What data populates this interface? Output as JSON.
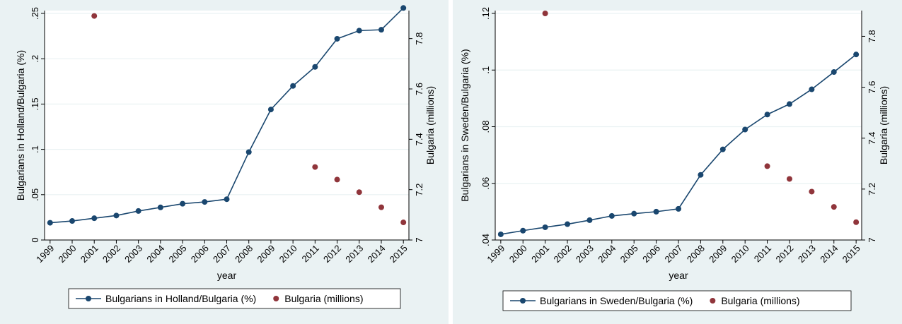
{
  "chart_data": [
    {
      "type": "line",
      "xlabel": "year",
      "ylabel_left": "Bulgarians in Holland/Bulgaria (%)",
      "ylabel_right": "Bulgaria (millions)",
      "x": [
        1999,
        2000,
        2001,
        2002,
        2003,
        2004,
        2005,
        2006,
        2007,
        2008,
        2009,
        2010,
        2011,
        2012,
        2013,
        2014,
        2015
      ],
      "xticks": [
        "1999",
        "2000",
        "2001",
        "2002",
        "2003",
        "2004",
        "2005",
        "2006",
        "2007",
        "2008",
        "2009",
        "2010",
        "2011",
        "2012",
        "2013",
        "2014",
        "2015"
      ],
      "ylim_left": [
        0,
        0.25
      ],
      "yticks_left": [
        0,
        0.05,
        0.1,
        0.15,
        0.2,
        0.25
      ],
      "yticklabels_left": [
        "0",
        ".05",
        ".1",
        ".15",
        ".2",
        ".25"
      ],
      "ylim_right": [
        7.0,
        7.9
      ],
      "yticks_right": [
        7.0,
        7.2,
        7.4,
        7.6,
        7.8
      ],
      "yticklabels_right": [
        "7",
        "7.2",
        "7.4",
        "7.6",
        "7.8"
      ],
      "series": [
        {
          "name": "Bulgarians in Holland/Bulgaria (%)",
          "axis": "left",
          "style": "line-marker",
          "color": "#1a476f",
          "x": [
            1999,
            2000,
            2001,
            2002,
            2003,
            2004,
            2005,
            2006,
            2007,
            2008,
            2009,
            2010,
            2011,
            2012,
            2013,
            2014,
            2015
          ],
          "values": [
            0.019,
            0.021,
            0.024,
            0.027,
            0.032,
            0.036,
            0.04,
            0.042,
            0.045,
            0.097,
            0.144,
            0.17,
            0.191,
            0.222,
            0.231,
            0.232,
            0.256
          ]
        },
        {
          "name": "Bulgaria (millions)",
          "axis": "right",
          "style": "scatter",
          "color": "#90353b",
          "x": [
            2001,
            2011,
            2012,
            2013,
            2014,
            2015
          ],
          "values": [
            7.89,
            7.29,
            7.24,
            7.19,
            7.13,
            7.07
          ]
        }
      ],
      "grid": "horizontal",
      "legend": "bottom"
    },
    {
      "type": "line",
      "xlabel": "year",
      "ylabel_left": "Bulgarians in Sweden/Bulgaria (%)",
      "ylabel_right": "Bulgaria (millions)",
      "x": [
        1999,
        2000,
        2001,
        2002,
        2003,
        2004,
        2005,
        2006,
        2007,
        2008,
        2009,
        2010,
        2011,
        2012,
        2013,
        2014,
        2015
      ],
      "xticks": [
        "1999",
        "2000",
        "2001",
        "2002",
        "2003",
        "2004",
        "2005",
        "2006",
        "2007",
        "2008",
        "2009",
        "2010",
        "2011",
        "2012",
        "2013",
        "2014",
        "2015"
      ],
      "ylim_left": [
        0.04,
        0.12
      ],
      "yticks_left": [
        0.04,
        0.06,
        0.08,
        0.1,
        0.12
      ],
      "yticklabels_left": [
        ".04",
        ".06",
        ".08",
        ".1",
        ".12"
      ],
      "ylim_right": [
        7.0,
        7.89
      ],
      "yticks_right": [
        7.0,
        7.2,
        7.4,
        7.6,
        7.8
      ],
      "yticklabels_right": [
        "7",
        "7.2",
        "7.4",
        "7.6",
        "7.8"
      ],
      "series": [
        {
          "name": "Bulgarians in Sweden/Bulgaria (%)",
          "axis": "left",
          "style": "line-marker",
          "color": "#1a476f",
          "x": [
            1999,
            2000,
            2001,
            2002,
            2003,
            2004,
            2005,
            2006,
            2007,
            2008,
            2009,
            2010,
            2011,
            2012,
            2013,
            2014,
            2015
          ],
          "values": [
            0.042,
            0.0433,
            0.0445,
            0.0456,
            0.047,
            0.0485,
            0.0493,
            0.05,
            0.051,
            0.063,
            0.072,
            0.079,
            0.0843,
            0.088,
            0.0932,
            0.0993,
            0.1055
          ]
        },
        {
          "name": "Bulgaria (millions)",
          "axis": "right",
          "style": "scatter",
          "color": "#90353b",
          "x": [
            2001,
            2011,
            2012,
            2013,
            2014,
            2015
          ],
          "values": [
            7.89,
            7.29,
            7.24,
            7.19,
            7.13,
            7.07
          ]
        }
      ],
      "grid": "horizontal",
      "legend": "bottom"
    }
  ]
}
